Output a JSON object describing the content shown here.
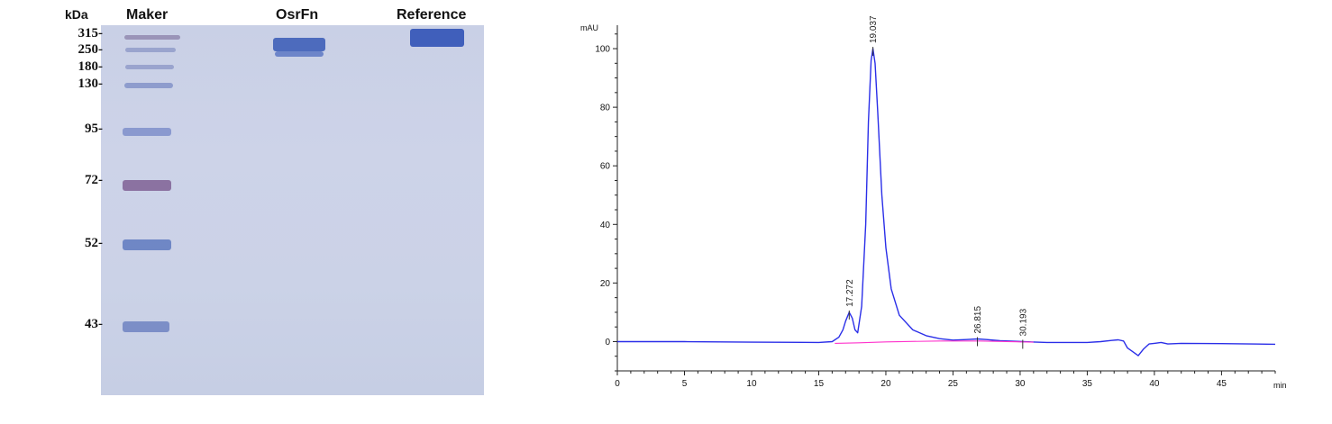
{
  "gel": {
    "unit": "kDa",
    "lanes": [
      "Maker",
      "OsrFn",
      "Reference"
    ],
    "markers": [
      {
        "label": "315-",
        "kda": 315
      },
      {
        "label": "250-",
        "kda": 250
      },
      {
        "label": "180-",
        "kda": 180
      },
      {
        "label": "130-",
        "kda": 130
      },
      {
        "label": "95-",
        "kda": 95
      },
      {
        "label": "72-",
        "kda": 72
      },
      {
        "label": "52-",
        "kda": 52
      },
      {
        "label": "43-",
        "kda": 43
      }
    ],
    "colors": {
      "background": "#cad1e7",
      "band": "#3f5fb8",
      "marker72": "#7a5a8e"
    }
  },
  "chart_data": {
    "type": "line",
    "title": "",
    "xlabel": "min",
    "ylabel": "mAU",
    "xlim": [
      0,
      49
    ],
    "ylim": [
      -10,
      108
    ],
    "x_ticks": [
      0,
      5,
      10,
      15,
      20,
      25,
      30,
      35,
      40,
      45
    ],
    "x_tick_labels": [
      "0",
      "5",
      "10",
      "15",
      "20",
      "25",
      "30",
      "35",
      "40",
      "45"
    ],
    "y_ticks": [
      0,
      20,
      40,
      60,
      80,
      100
    ],
    "y_tick_labels": [
      "0",
      "20",
      "40",
      "60",
      "80",
      "100"
    ],
    "grid": false,
    "series": [
      {
        "color": "#2a2ee8",
        "x": [
          0,
          5,
          10,
          15,
          16,
          16.5,
          16.8,
          17.0,
          17.272,
          17.5,
          17.7,
          17.9,
          18.2,
          18.5,
          18.7,
          18.9,
          19.037,
          19.2,
          19.4,
          19.7,
          20.0,
          20.4,
          21.0,
          22.0,
          23.0,
          24.0,
          25.0,
          26.0,
          26.815,
          27.5,
          28.5,
          30.193,
          32,
          35,
          36,
          36.8,
          37.3,
          37.7,
          38.0,
          38.4,
          38.8,
          39.2,
          39.6,
          40.0,
          40.5,
          41.0,
          42,
          45,
          49
        ],
        "y": [
          0,
          0,
          -0.2,
          -0.3,
          0,
          1.5,
          4,
          7,
          10,
          8,
          4,
          3,
          12,
          40,
          75,
          96,
          100,
          95,
          78,
          50,
          32,
          18,
          9,
          4,
          2,
          1,
          0.5,
          0.7,
          0.9,
          0.7,
          0.3,
          0,
          -0.3,
          -0.3,
          0,
          0.4,
          0.6,
          0.2,
          -2.2,
          -3.5,
          -4.8,
          -2.5,
          -0.8,
          -0.6,
          -0.3,
          -0.8,
          -0.6,
          -0.7,
          -0.9
        ]
      },
      {
        "color": "#ff33cc",
        "x": [
          16.2,
          18.0,
          20,
          24,
          27,
          30.193,
          31.0
        ],
        "y": [
          -0.6,
          -0.4,
          -0.1,
          0.2,
          0.2,
          -0.1,
          -0.2
        ]
      }
    ],
    "peak_labels": [
      {
        "text": "17.272",
        "x": 17.272,
        "y": 10
      },
      {
        "text": "19.037",
        "x": 19.037,
        "y": 100
      },
      {
        "text": "26.815",
        "x": 26.815,
        "y": 0.9
      },
      {
        "text": "30.193",
        "x": 30.193,
        "y": 0
      }
    ]
  }
}
